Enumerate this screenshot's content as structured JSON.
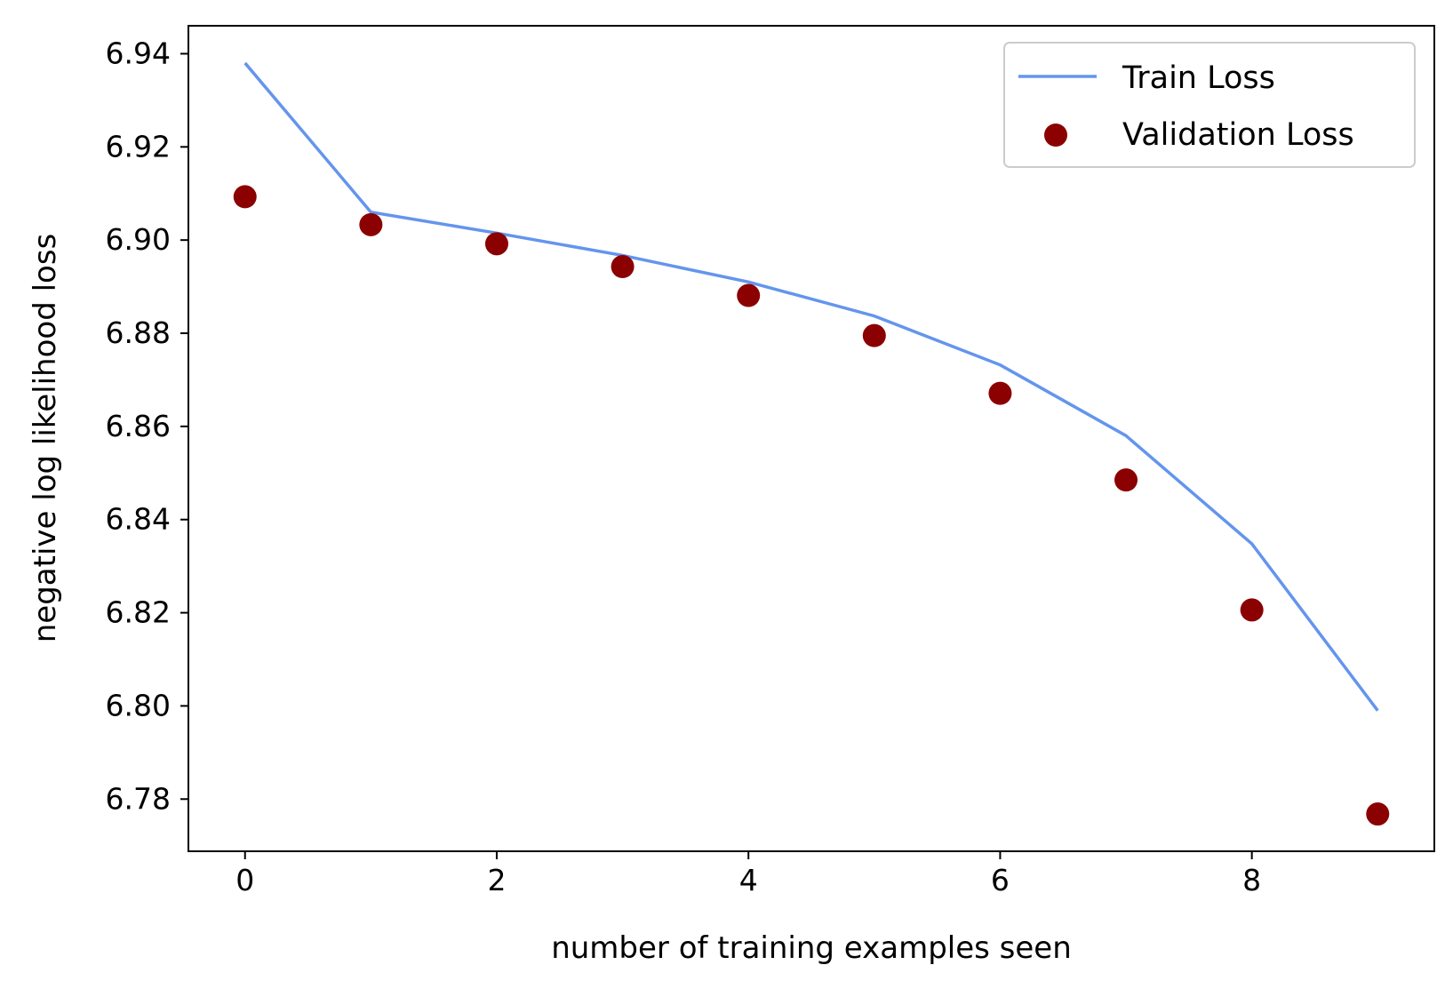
{
  "chart_data": {
    "type": "line",
    "title": "",
    "xlabel": "number of training examples seen",
    "ylabel": "negative log likelihood loss",
    "xlim": [
      -0.45,
      9.45
    ],
    "ylim": [
      6.7688,
      6.946
    ],
    "xticks": [
      0,
      2,
      4,
      6,
      8
    ],
    "xtick_labels": [
      "0",
      "2",
      "4",
      "6",
      "8"
    ],
    "yticks": [
      6.78,
      6.8,
      6.82,
      6.84,
      6.86,
      6.88,
      6.9,
      6.92,
      6.94
    ],
    "ytick_labels": [
      "6.78",
      "6.80",
      "6.82",
      "6.84",
      "6.86",
      "6.88",
      "6.90",
      "6.92",
      "6.94"
    ],
    "grid": false,
    "legend_position": "top-right",
    "series": [
      {
        "name": "Train Loss",
        "kind": "line",
        "color": "#6495ED",
        "x": [
          0,
          1,
          2,
          3,
          4,
          5,
          6,
          7,
          8,
          9
        ],
        "y": [
          6.938,
          6.906,
          6.9015,
          6.8967,
          6.891,
          6.8837,
          6.8732,
          6.858,
          6.8348,
          6.799
        ]
      },
      {
        "name": "Validation Loss",
        "kind": "scatter",
        "color": "#8B0000",
        "x": [
          0,
          1,
          2,
          3,
          4,
          5,
          6,
          7,
          8,
          9
        ],
        "y": [
          6.9093,
          6.9033,
          6.8992,
          6.8943,
          6.8881,
          6.8795,
          6.8671,
          6.8485,
          6.8206,
          6.7768
        ]
      }
    ]
  }
}
